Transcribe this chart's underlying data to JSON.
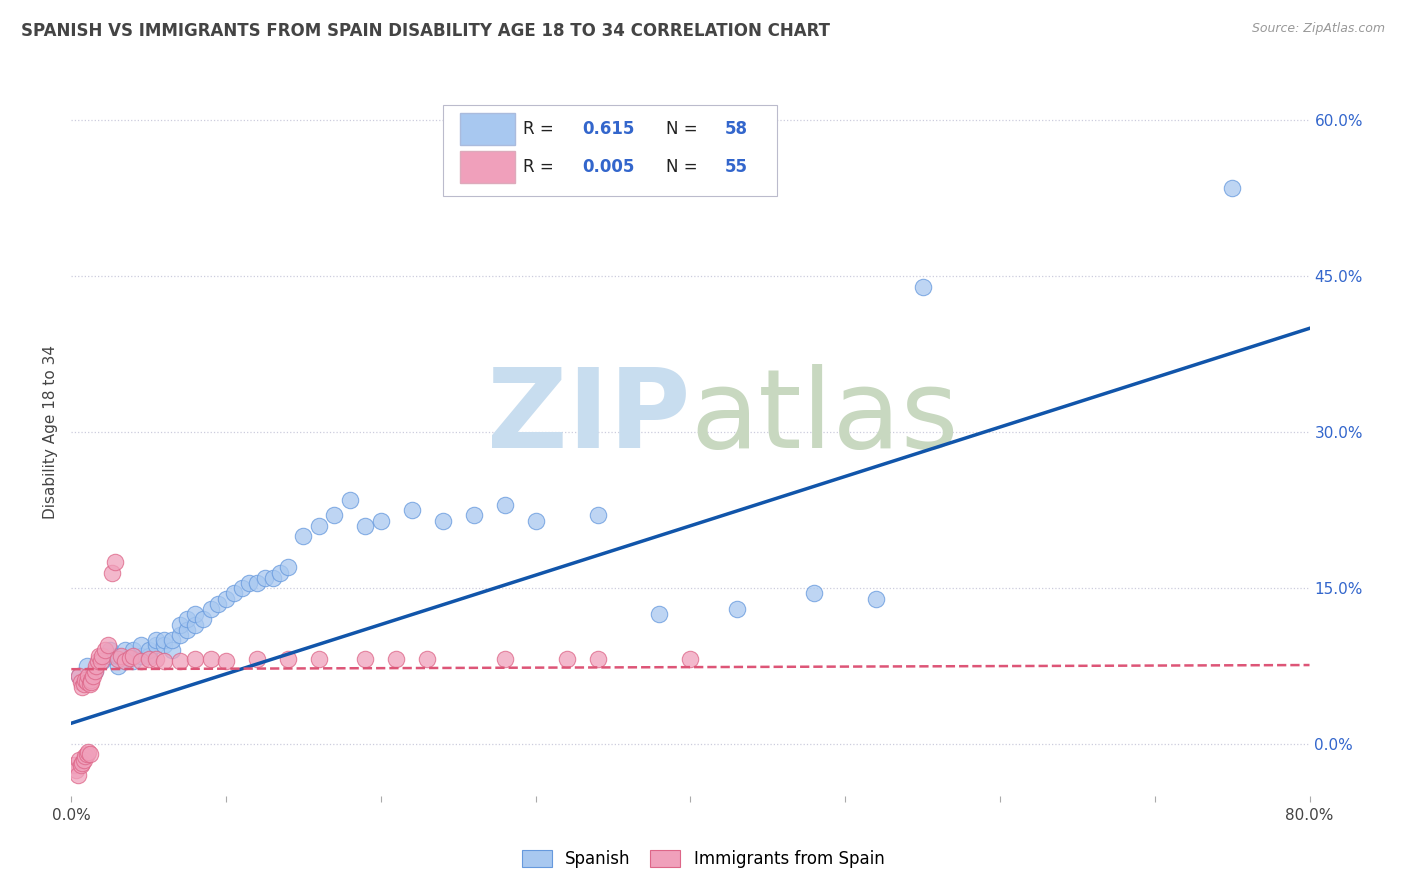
{
  "title": "SPANISH VS IMMIGRANTS FROM SPAIN DISABILITY AGE 18 TO 34 CORRELATION CHART",
  "source": "Source: ZipAtlas.com",
  "ylabel": "Disability Age 18 to 34",
  "xlim": [
    0.0,
    0.8
  ],
  "ylim": [
    -0.05,
    0.65
  ],
  "y_ticks": [
    0.0,
    0.15,
    0.3,
    0.45,
    0.6
  ],
  "blue_color": "#A8C8F0",
  "blue_edge_color": "#6699DD",
  "pink_color": "#F0A0BB",
  "pink_edge_color": "#DD6688",
  "blue_line_color": "#1155AA",
  "pink_line_color": "#DD5577",
  "text_color_dark": "#444444",
  "text_color_blue": "#3366CC",
  "grid_color": "#CCCCDD",
  "watermark_zip_color": "#C8D8EE",
  "watermark_atlas_color": "#B8CCB8",
  "blue_scatter_x": [
    0.005,
    0.01,
    0.015,
    0.02,
    0.025,
    0.025,
    0.03,
    0.03,
    0.035,
    0.035,
    0.04,
    0.04,
    0.045,
    0.045,
    0.05,
    0.05,
    0.055,
    0.055,
    0.06,
    0.06,
    0.065,
    0.065,
    0.07,
    0.07,
    0.075,
    0.075,
    0.08,
    0.08,
    0.085,
    0.09,
    0.095,
    0.1,
    0.105,
    0.11,
    0.115,
    0.12,
    0.125,
    0.13,
    0.135,
    0.14,
    0.15,
    0.16,
    0.17,
    0.18,
    0.19,
    0.2,
    0.22,
    0.24,
    0.26,
    0.28,
    0.3,
    0.34,
    0.38,
    0.43,
    0.48,
    0.52,
    0.55,
    0.75
  ],
  "blue_scatter_y": [
    0.065,
    0.075,
    0.07,
    0.08,
    0.085,
    0.09,
    0.075,
    0.085,
    0.08,
    0.09,
    0.08,
    0.09,
    0.085,
    0.095,
    0.085,
    0.09,
    0.095,
    0.1,
    0.095,
    0.1,
    0.09,
    0.1,
    0.105,
    0.115,
    0.11,
    0.12,
    0.115,
    0.125,
    0.12,
    0.13,
    0.135,
    0.14,
    0.145,
    0.15,
    0.155,
    0.155,
    0.16,
    0.16,
    0.165,
    0.17,
    0.2,
    0.21,
    0.22,
    0.235,
    0.21,
    0.215,
    0.225,
    0.215,
    0.22,
    0.23,
    0.215,
    0.22,
    0.125,
    0.13,
    0.145,
    0.14,
    0.44,
    0.535
  ],
  "pink_scatter_x": [
    0.002,
    0.003,
    0.004,
    0.005,
    0.005,
    0.006,
    0.006,
    0.007,
    0.007,
    0.008,
    0.008,
    0.009,
    0.009,
    0.01,
    0.01,
    0.011,
    0.011,
    0.012,
    0.012,
    0.013,
    0.013,
    0.014,
    0.015,
    0.016,
    0.017,
    0.018,
    0.019,
    0.02,
    0.022,
    0.024,
    0.026,
    0.028,
    0.03,
    0.032,
    0.035,
    0.038,
    0.04,
    0.045,
    0.05,
    0.055,
    0.06,
    0.07,
    0.08,
    0.09,
    0.1,
    0.12,
    0.14,
    0.16,
    0.19,
    0.21,
    0.23,
    0.28,
    0.32,
    0.34,
    0.4
  ],
  "pink_scatter_y": [
    -0.02,
    -0.025,
    -0.03,
    -0.015,
    0.065,
    -0.02,
    0.06,
    -0.018,
    0.055,
    -0.015,
    0.058,
    -0.012,
    0.062,
    -0.01,
    0.06,
    0.065,
    -0.008,
    0.058,
    -0.01,
    0.062,
    0.06,
    0.065,
    0.07,
    0.075,
    0.08,
    0.085,
    0.08,
    0.085,
    0.09,
    0.095,
    0.165,
    0.175,
    0.082,
    0.085,
    0.08,
    0.083,
    0.085,
    0.08,
    0.082,
    0.082,
    0.08,
    0.08,
    0.082,
    0.082,
    0.08,
    0.082,
    0.082,
    0.082,
    0.082,
    0.082,
    0.082,
    0.082,
    0.082,
    0.082,
    0.082
  ],
  "blue_trend_x": [
    0.0,
    0.8
  ],
  "blue_trend_y": [
    0.02,
    0.4
  ],
  "pink_trend_x": [
    0.0,
    0.8
  ],
  "pink_trend_y": [
    0.072,
    0.076
  ]
}
